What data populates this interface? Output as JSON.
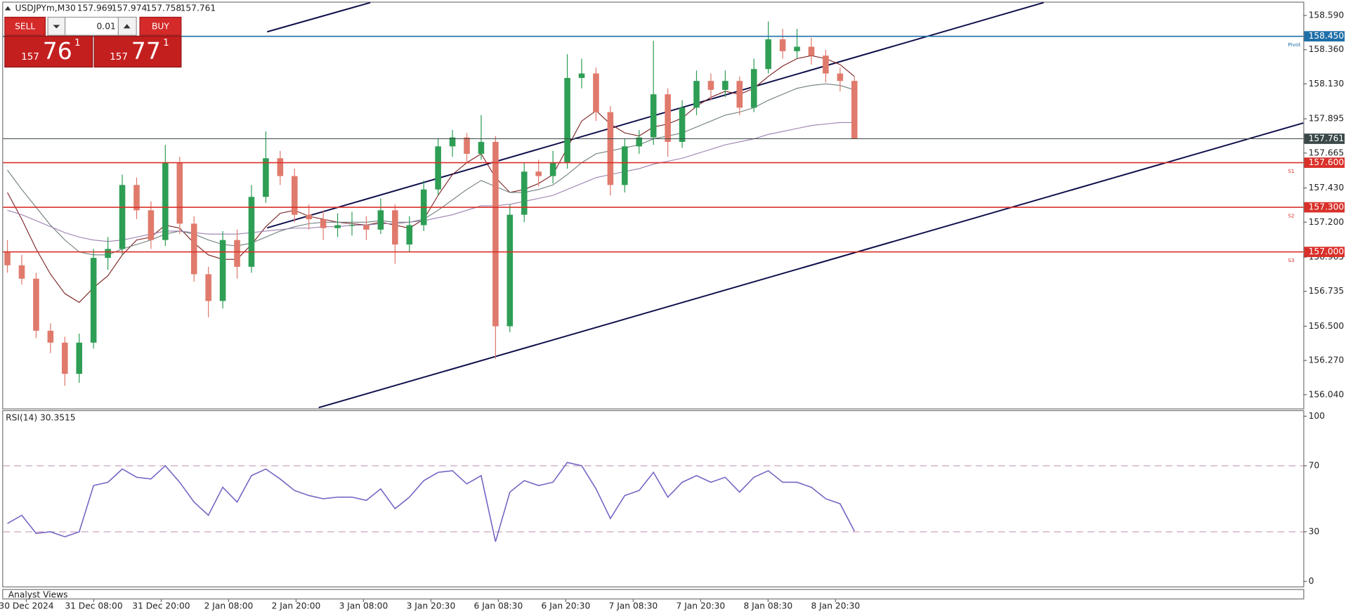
{
  "header": {
    "symbol": "USDJPYm,M30",
    "quote": [
      157.969,
      157.974,
      157.758,
      157.761
    ]
  },
  "trade_panel": {
    "sell": "SELL",
    "lot": "0.01",
    "buy": "BUY",
    "bid": [
      "157",
      "76",
      "1"
    ],
    "ask": [
      "157",
      "77",
      "1"
    ]
  },
  "footer": "Analyst Views",
  "chart_data": [
    {
      "type": "candlestick",
      "up_color": "#2e9e55",
      "down_color": "#e07a6c",
      "ylim": [
        155.953,
        158.671
      ],
      "yticks": [
        {
          "value": 158.59,
          "label": "158.590"
        },
        {
          "value": 158.36,
          "label": "158.360"
        },
        {
          "value": 158.13,
          "label": "158.130"
        },
        157.895,
        157.665,
        {
          "value": 157.43,
          "label": "157.430"
        },
        {
          "value": 157.2,
          "label": "157.200"
        },
        156.965,
        156.735,
        {
          "value": 156.5,
          "label": "156.500"
        },
        {
          "value": 156.27,
          "label": "156.270"
        },
        {
          "value": 156.04,
          "label": "156.040"
        }
      ],
      "xticks": [
        "30 Dec 2024",
        "31 Dec 08:00",
        "31 Dec 20:00",
        "2 Jan 08:00",
        "2 Jan 20:00",
        "3 Jan 08:00",
        "3 Jan 20:30",
        "6 Jan 08:30",
        "6 Jan 20:30",
        "7 Jan 08:30",
        "7 Jan 20:30",
        "8 Jan 08:30",
        "8 Jan 20:30"
      ],
      "levels": [
        {
          "value": 158.45,
          "label": "158.450",
          "name": "Pivot",
          "color": "#1f6fa8"
        },
        {
          "value": 157.761,
          "color": "#3b4848"
        },
        {
          "value": 157.6,
          "label": "157.600",
          "name": "S1",
          "color": "#d9302a"
        },
        {
          "value": 157.3,
          "label": "157.300",
          "name": "S2",
          "color": "#d9302a"
        },
        {
          "value": 157.0,
          "label": "157.000",
          "name": "S3",
          "color": "#d9302a"
        }
      ],
      "ohlc": [
        [
          157.0,
          157.08,
          156.86,
          156.91
        ],
        [
          156.91,
          156.98,
          156.78,
          156.82
        ],
        [
          156.82,
          156.86,
          156.42,
          156.47
        ],
        [
          156.47,
          156.52,
          156.32,
          156.39
        ],
        [
          156.39,
          156.43,
          156.1,
          156.18
        ],
        [
          156.18,
          156.45,
          156.12,
          156.39
        ],
        [
          156.39,
          157.02,
          156.35,
          156.96
        ],
        [
          156.96,
          157.1,
          156.88,
          157.02
        ],
        [
          157.02,
          157.52,
          156.98,
          157.45
        ],
        [
          157.45,
          157.5,
          157.22,
          157.28
        ],
        [
          157.28,
          157.34,
          157.02,
          157.08
        ],
        [
          157.08,
          157.72,
          157.04,
          157.6
        ],
        [
          157.6,
          157.64,
          157.12,
          157.19
        ],
        [
          157.19,
          157.24,
          156.8,
          156.85
        ],
        [
          156.85,
          156.9,
          156.56,
          156.67
        ],
        [
          156.67,
          157.14,
          156.62,
          157.08
        ],
        [
          157.08,
          157.15,
          156.82,
          156.9
        ],
        [
          156.9,
          157.45,
          156.86,
          157.37
        ],
        [
          157.37,
          157.81,
          157.33,
          157.63
        ],
        [
          157.63,
          157.68,
          157.45,
          157.51
        ],
        [
          157.51,
          157.56,
          157.2,
          157.25
        ],
        [
          157.25,
          157.32,
          157.15,
          157.22
        ],
        [
          157.22,
          157.28,
          157.08,
          157.16
        ],
        [
          157.16,
          157.26,
          157.1,
          157.18
        ],
        [
          157.18,
          157.27,
          157.11,
          157.18
        ],
        [
          157.18,
          157.24,
          157.08,
          157.15
        ],
        [
          157.15,
          157.36,
          157.12,
          157.28
        ],
        [
          157.28,
          157.32,
          156.92,
          157.05
        ],
        [
          157.05,
          157.24,
          157.0,
          157.18
        ],
        [
          157.18,
          157.48,
          157.14,
          157.42
        ],
        [
          157.42,
          157.76,
          157.38,
          157.71
        ],
        [
          157.71,
          157.82,
          157.64,
          157.77
        ],
        [
          157.77,
          157.8,
          157.6,
          157.66
        ],
        [
          157.66,
          157.92,
          157.62,
          157.74
        ],
        [
          157.74,
          157.78,
          156.28,
          156.5
        ],
        [
          156.5,
          157.32,
          156.46,
          157.25
        ],
        [
          157.25,
          157.6,
          157.2,
          157.54
        ],
        [
          157.54,
          157.62,
          157.44,
          157.51
        ],
        [
          157.51,
          157.68,
          157.46,
          157.6
        ],
        [
          157.6,
          158.33,
          157.56,
          158.17
        ],
        [
          158.17,
          158.3,
          158.1,
          158.2
        ],
        [
          158.2,
          158.24,
          157.88,
          157.94
        ],
        [
          157.94,
          157.98,
          157.38,
          157.45
        ],
        [
          157.45,
          157.76,
          157.4,
          157.71
        ],
        [
          157.71,
          157.82,
          157.66,
          157.77
        ],
        [
          157.77,
          158.42,
          157.72,
          158.06
        ],
        [
          158.06,
          158.1,
          157.64,
          157.74
        ],
        [
          157.74,
          158.02,
          157.7,
          157.97
        ],
        [
          157.97,
          158.22,
          157.92,
          158.15
        ],
        [
          158.15,
          158.2,
          158.02,
          158.09
        ],
        [
          158.09,
          158.22,
          158.04,
          158.15
        ],
        [
          158.15,
          158.18,
          157.92,
          157.97
        ],
        [
          157.97,
          158.3,
          157.94,
          158.23
        ],
        [
          158.23,
          158.55,
          158.2,
          158.43
        ],
        [
          158.43,
          158.5,
          158.3,
          158.35
        ],
        [
          158.35,
          158.5,
          158.3,
          158.38
        ],
        [
          158.38,
          158.44,
          158.26,
          158.32
        ],
        [
          158.32,
          158.36,
          158.14,
          158.2
        ],
        [
          158.2,
          158.24,
          158.08,
          158.15
        ],
        [
          158.15,
          158.18,
          157.758,
          157.761
        ]
      ],
      "series": [
        {
          "color": "#7a1f1f",
          "values": [
            157.4,
            157.22,
            157.02,
            156.85,
            156.72,
            156.66,
            156.76,
            156.84,
            156.98,
            157.08,
            157.1,
            157.18,
            157.16,
            157.06,
            156.98,
            156.95,
            156.95,
            157.05,
            157.17,
            157.26,
            157.28,
            157.24,
            157.22,
            157.2,
            157.19,
            157.18,
            157.2,
            157.18,
            157.16,
            157.22,
            157.38,
            157.52,
            157.6,
            157.66,
            157.5,
            157.4,
            157.42,
            157.46,
            157.52,
            157.7,
            157.88,
            157.95,
            157.86,
            157.8,
            157.78,
            157.84,
            157.86,
            157.9,
            157.98,
            158.04,
            158.08,
            158.06,
            158.1,
            158.18,
            158.25,
            158.3,
            158.32,
            158.3,
            158.26,
            158.18
          ]
        },
        {
          "color": "#6f7c7c",
          "values": [
            157.55,
            157.42,
            157.3,
            157.18,
            157.08,
            157.0,
            156.98,
            156.98,
            157.02,
            157.05,
            157.08,
            157.12,
            157.14,
            157.12,
            157.08,
            157.05,
            157.04,
            157.06,
            157.1,
            157.14,
            157.17,
            157.19,
            157.2,
            157.2,
            157.2,
            157.2,
            157.21,
            157.2,
            157.2,
            157.22,
            157.28,
            157.35,
            157.42,
            157.48,
            157.44,
            157.4,
            157.4,
            157.42,
            157.45,
            157.52,
            157.6,
            157.66,
            157.68,
            157.7,
            157.72,
            157.76,
            157.78,
            157.8,
            157.84,
            157.88,
            157.92,
            157.94,
            157.97,
            158.02,
            158.06,
            158.1,
            158.12,
            158.13,
            158.12,
            158.09
          ]
        },
        {
          "color": "#9b7fae",
          "values": [
            157.28,
            157.25,
            157.21,
            157.17,
            157.13,
            157.1,
            157.08,
            157.07,
            157.08,
            157.1,
            157.12,
            157.14,
            157.14,
            157.13,
            157.12,
            157.12,
            157.12,
            157.13,
            157.14,
            157.15,
            157.16,
            157.16,
            157.17,
            157.17,
            157.18,
            157.18,
            157.19,
            157.19,
            157.2,
            157.21,
            157.23,
            157.25,
            157.28,
            157.31,
            157.31,
            157.32,
            157.34,
            157.36,
            157.38,
            157.42,
            157.46,
            157.5,
            157.52,
            157.54,
            157.56,
            157.59,
            157.61,
            157.63,
            157.66,
            157.69,
            157.72,
            157.74,
            157.76,
            157.79,
            157.81,
            157.83,
            157.85,
            157.86,
            157.87,
            157.87
          ]
        }
      ]
    },
    {
      "type": "line",
      "title": "RSI(14) 30.3515",
      "color": "#7466c4",
      "level_color": "#c9a3bd",
      "ylim": [
        0,
        100
      ],
      "yticks": [
        0,
        30,
        70,
        100
      ],
      "levels": [
        30,
        70
      ],
      "values": [
        35,
        40,
        29,
        30,
        27,
        30,
        58,
        60,
        68,
        63,
        62,
        70,
        60,
        48,
        40,
        57,
        48,
        64,
        68,
        62,
        55,
        52,
        50,
        51,
        51,
        49,
        56,
        44,
        51,
        61,
        66,
        67,
        59,
        64,
        24,
        54,
        61,
        58,
        60,
        72,
        70,
        56,
        38,
        52,
        55,
        66,
        51,
        60,
        64,
        60,
        63,
        54,
        63,
        67,
        60,
        60,
        57,
        50,
        47,
        30.3515
      ]
    }
  ]
}
